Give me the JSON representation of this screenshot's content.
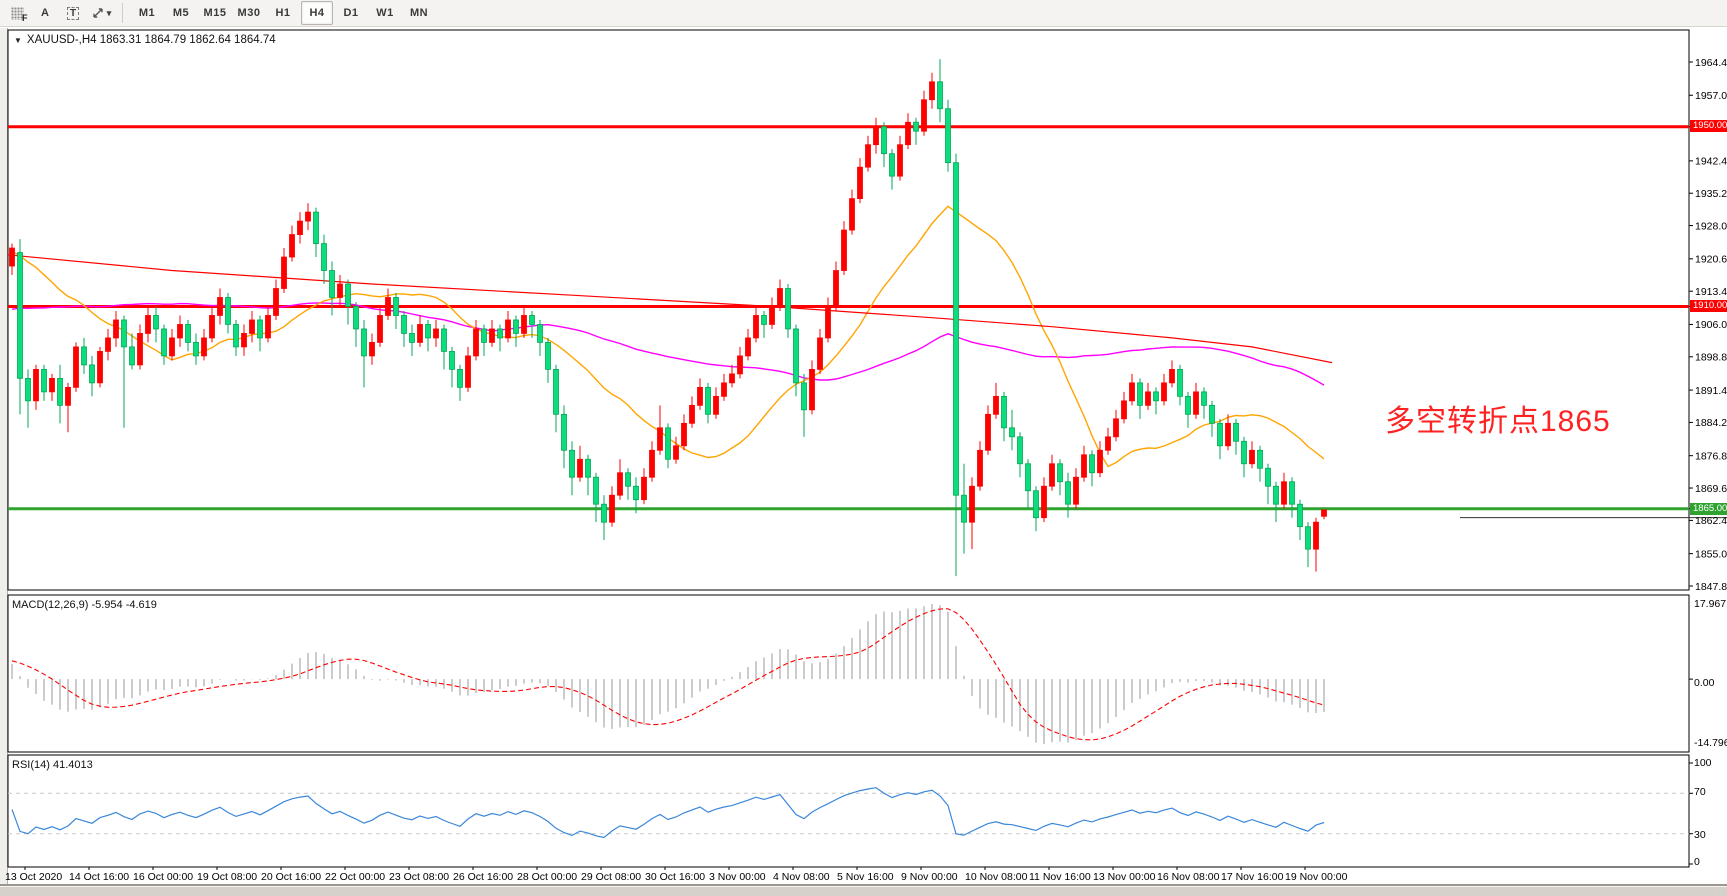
{
  "toolbar": {
    "tools": [
      {
        "name": "new-order-grid-tool",
        "label": "F"
      },
      {
        "name": "text-label-tool",
        "label": "A"
      },
      {
        "name": "text-box-tool",
        "label": "T"
      },
      {
        "name": "arrows-tool",
        "label": ""
      }
    ],
    "timeframes": [
      "M1",
      "M5",
      "M15",
      "M30",
      "H1",
      "H4",
      "D1",
      "W1",
      "MN"
    ],
    "active_timeframe": "H4"
  },
  "icons": {
    "collapse_marker": "▼",
    "tool_caret": "▾"
  },
  "chart": {
    "title": "XAUUSD-,H4  1863.31 1864.79 1862.64 1864.74",
    "annotation": {
      "text": "多空转折点1865",
      "color": "#ff2222"
    },
    "badges": {
      "r1950": "1950.00",
      "r1910": "1910.00",
      "g1865": "1865.00"
    }
  },
  "macd_panel": {
    "label": "MACD(12,26,9) -5.954 -4.619",
    "scale_max": "17.967",
    "scale_zero": "0.00",
    "scale_min": "-14.796"
  },
  "rsi_panel": {
    "label": "RSI(14) 41.4013",
    "levels": [
      {
        "value": 100,
        "text": "100"
      },
      {
        "value": 70,
        "text": "70"
      },
      {
        "value": 30,
        "text": "30"
      },
      {
        "value": 0,
        "text": "0"
      }
    ]
  },
  "time_axis": [
    "13 Oct 2020",
    "14 Oct 16:00",
    "16 Oct 00:00",
    "19 Oct 08:00",
    "20 Oct 16:00",
    "22 Oct 00:00",
    "23 Oct 08:00",
    "26 Oct 16:00",
    "28 Oct 00:00",
    "29 Oct 08:00",
    "30 Oct 16:00",
    "3 Nov 00:00",
    "4 Nov 08:00",
    "5 Nov 16:00",
    "9 Nov 00:00",
    "10 Nov 08:00",
    "11 Nov 16:00",
    "13 Nov 00:00",
    "16 Nov 08:00",
    "17 Nov 16:00",
    "19 Nov 00:00"
  ],
  "chart_data": {
    "type": "candlestick",
    "symbol": "XAUUSD",
    "period": "H4",
    "colors": {
      "bull": "#ff0000",
      "bear_fill": "#0bdc7c",
      "bear_border": "#00a857",
      "hline_red": "#ff0000",
      "hline_green": "#2fa32f",
      "bid_line": "#333333",
      "ma_fast": "#ffa500",
      "ma_slow": "#ff00ff",
      "trendline": "#ff0000",
      "macd_hist": "#c0c0c0",
      "macd_signal": "#ff0000",
      "rsi_line": "#3a87d9",
      "rsi_levels": "#c8c8c8",
      "axis_text": "#000000"
    },
    "y_ticks": [
      {
        "label": "1964.40",
        "price": 1964.4
      },
      {
        "label": "1957.00",
        "price": 1957.0
      },
      {
        "label": "1950.00",
        "price": 1950.0,
        "badge": "red"
      },
      {
        "label": "1942.40",
        "price": 1942.4
      },
      {
        "label": "1935.20",
        "price": 1935.2
      },
      {
        "label": "1928.00",
        "price": 1928.0
      },
      {
        "label": "1920.60",
        "price": 1920.6
      },
      {
        "label": "1913.40",
        "price": 1913.4
      },
      {
        "label": "1910.00",
        "price": 1910.0,
        "badge": "red"
      },
      {
        "label": "1906.00",
        "price": 1906.0
      },
      {
        "label": "1898.80",
        "price": 1898.8
      },
      {
        "label": "1891.40",
        "price": 1891.4
      },
      {
        "label": "1884.20",
        "price": 1884.2
      },
      {
        "label": "1876.80",
        "price": 1876.8
      },
      {
        "label": "1869.60",
        "price": 1869.6
      },
      {
        "label": "1865.00",
        "price": 1865.0,
        "badge": "green"
      },
      {
        "label": "1862.40",
        "price": 1862.4
      },
      {
        "label": "1855.00",
        "price": 1855.0
      },
      {
        "label": "1847.80",
        "price": 1847.8
      }
    ],
    "hlines": [
      {
        "price": 1950.0,
        "color": "#ff0000",
        "width": 3
      },
      {
        "price": 1910.0,
        "color": "#ff0000",
        "width": 3
      },
      {
        "price": 1865.0,
        "color": "#2fa32f",
        "width": 3
      }
    ],
    "bid_price": 1862.9,
    "ma_fast_period": 20,
    "ma_slow_period": 60,
    "macd_params": {
      "fast": 12,
      "slow": 26,
      "signal": 9
    },
    "rsi_period": 14,
    "trendline_points": [
      [
        -0.5,
        1921.5
      ],
      [
        20,
        1918
      ],
      [
        45,
        1915
      ],
      [
        70,
        1912.5
      ],
      [
        95,
        1910
      ],
      [
        115,
        1907.5
      ],
      [
        130,
        1905.5
      ],
      [
        145,
        1903
      ],
      [
        155,
        1901
      ],
      [
        165,
        1897.5
      ]
    ],
    "history_closes": [
      1885,
      1882,
      1888,
      1892,
      1890,
      1886,
      1884,
      1889,
      1893,
      1896,
      1899,
      1902,
      1898,
      1895,
      1891,
      1894,
      1898,
      1903,
      1907,
      1905,
      1902,
      1899,
      1903,
      1908,
      1912,
      1915,
      1911,
      1908,
      1905,
      1909,
      1913,
      1916,
      1912,
      1909,
      1906,
      1910,
      1914,
      1918,
      1921,
      1919,
      1916,
      1913,
      1917,
      1920,
      1924,
      1927,
      1923,
      1920,
      1917,
      1921,
      1925,
      1928,
      1924,
      1921,
      1918,
      1922,
      1926,
      1929,
      1925,
      1922
    ],
    "candles": [
      [
        1919,
        1924,
        1917,
        1923
      ],
      [
        1922,
        1925,
        1886,
        1894
      ],
      [
        1894,
        1896,
        1883,
        1889
      ],
      [
        1889,
        1897,
        1887,
        1896
      ],
      [
        1896,
        1897,
        1889,
        1891
      ],
      [
        1891,
        1895,
        1889,
        1894
      ],
      [
        1894,
        1897,
        1884,
        1888
      ],
      [
        1888,
        1893,
        1882,
        1892
      ],
      [
        1892,
        1902,
        1891,
        1901
      ],
      [
        1901,
        1903,
        1895,
        1897
      ],
      [
        1897,
        1899,
        1890,
        1893
      ],
      [
        1893,
        1901,
        1892,
        1900
      ],
      [
        1900,
        1905,
        1898,
        1903
      ],
      [
        1903,
        1909,
        1901,
        1907
      ],
      [
        1907,
        1908,
        1883,
        1901
      ],
      [
        1901,
        1904,
        1896,
        1897
      ],
      [
        1897,
        1906,
        1896,
        1904
      ],
      [
        1904,
        1910,
        1902,
        1908
      ],
      [
        1908,
        1910,
        1902,
        1905
      ],
      [
        1905,
        1906,
        1897,
        1899
      ],
      [
        1899,
        1905,
        1898,
        1903
      ],
      [
        1903,
        1908,
        1901,
        1906
      ],
      [
        1906,
        1907,
        1900,
        1902
      ],
      [
        1902,
        1904,
        1897,
        1899
      ],
      [
        1899,
        1905,
        1898,
        1903
      ],
      [
        1903,
        1910,
        1902,
        1908
      ],
      [
        1908,
        1914,
        1906,
        1912
      ],
      [
        1912,
        1913,
        1904,
        1906
      ],
      [
        1906,
        1907,
        1899,
        1901
      ],
      [
        1901,
        1906,
        1899,
        1904
      ],
      [
        1904,
        1909,
        1902,
        1907
      ],
      [
        1907,
        1908,
        1900,
        1903
      ],
      [
        1903,
        1910,
        1902,
        1908
      ],
      [
        1908,
        1916,
        1907,
        1914
      ],
      [
        1914,
        1923,
        1913,
        1921
      ],
      [
        1921,
        1928,
        1920,
        1926
      ],
      [
        1926,
        1931,
        1924,
        1929
      ],
      [
        1929,
        1933,
        1927,
        1931
      ],
      [
        1931,
        1932,
        1921,
        1924
      ],
      [
        1924,
        1926,
        1915,
        1918
      ],
      [
        1918,
        1920,
        1908,
        1912
      ],
      [
        1912,
        1917,
        1910,
        1915
      ],
      [
        1915,
        1916,
        1906,
        1910
      ],
      [
        1910,
        1911,
        1901,
        1905
      ],
      [
        1905,
        1907,
        1892,
        1899
      ],
      [
        1899,
        1904,
        1897,
        1902
      ],
      [
        1902,
        1910,
        1901,
        1908
      ],
      [
        1908,
        1914,
        1907,
        1912
      ],
      [
        1912,
        1913,
        1905,
        1908
      ],
      [
        1908,
        1909,
        1901,
        1904
      ],
      [
        1904,
        1906,
        1899,
        1902
      ],
      [
        1902,
        1908,
        1901,
        1906
      ],
      [
        1906,
        1907,
        1900,
        1903
      ],
      [
        1903,
        1907,
        1901,
        1905
      ],
      [
        1905,
        1906,
        1896,
        1900
      ],
      [
        1900,
        1901,
        1892,
        1896
      ],
      [
        1896,
        1897,
        1889,
        1892
      ],
      [
        1892,
        1901,
        1891,
        1899
      ],
      [
        1899,
        1907,
        1898,
        1905
      ],
      [
        1905,
        1906,
        1899,
        1902
      ],
      [
        1902,
        1907,
        1901,
        1905
      ],
      [
        1905,
        1906,
        1900,
        1903
      ],
      [
        1903,
        1909,
        1902,
        1907
      ],
      [
        1907,
        1908,
        1901,
        1904
      ],
      [
        1904,
        1910,
        1903,
        1908
      ],
      [
        1908,
        1909,
        1903,
        1906
      ],
      [
        1906,
        1907,
        1899,
        1902
      ],
      [
        1902,
        1903,
        1893,
        1896
      ],
      [
        1896,
        1897,
        1882,
        1886
      ],
      [
        1886,
        1888,
        1874,
        1878
      ],
      [
        1878,
        1880,
        1868,
        1872
      ],
      [
        1872,
        1879,
        1871,
        1876
      ],
      [
        1876,
        1877,
        1868,
        1872
      ],
      [
        1872,
        1873,
        1862,
        1866
      ],
      [
        1866,
        1868,
        1858,
        1862
      ],
      [
        1862,
        1870,
        1861,
        1868
      ],
      [
        1868,
        1876,
        1867,
        1873
      ],
      [
        1873,
        1874,
        1867,
        1870
      ],
      [
        1870,
        1872,
        1864,
        1867
      ],
      [
        1867,
        1874,
        1866,
        1872
      ],
      [
        1872,
        1880,
        1871,
        1878
      ],
      [
        1878,
        1888,
        1877,
        1883
      ],
      [
        1883,
        1884,
        1874,
        1876
      ],
      [
        1876,
        1881,
        1875,
        1879
      ],
      [
        1879,
        1886,
        1878,
        1884
      ],
      [
        1884,
        1890,
        1883,
        1888
      ],
      [
        1888,
        1894,
        1887,
        1892
      ],
      [
        1892,
        1893,
        1884,
        1886
      ],
      [
        1886,
        1892,
        1885,
        1890
      ],
      [
        1890,
        1895,
        1889,
        1893
      ],
      [
        1893,
        1897,
        1892,
        1895
      ],
      [
        1895,
        1901,
        1894,
        1899
      ],
      [
        1899,
        1905,
        1898,
        1903
      ],
      [
        1903,
        1910,
        1902,
        1908
      ],
      [
        1908,
        1909,
        1903,
        1906
      ],
      [
        1906,
        1912,
        1905,
        1910
      ],
      [
        1910,
        1916,
        1909,
        1914
      ],
      [
        1914,
        1915,
        1903,
        1905
      ],
      [
        1905,
        1906,
        1890,
        1893
      ],
      [
        1893,
        1895,
        1881,
        1887
      ],
      [
        1887,
        1898,
        1886,
        1896
      ],
      [
        1896,
        1905,
        1895,
        1903
      ],
      [
        1903,
        1912,
        1902,
        1910
      ],
      [
        1910,
        1920,
        1909,
        1918
      ],
      [
        1918,
        1929,
        1917,
        1927
      ],
      [
        1927,
        1936,
        1926,
        1934
      ],
      [
        1934,
        1943,
        1933,
        1941
      ],
      [
        1941,
        1948,
        1940,
        1946
      ],
      [
        1946,
        1952,
        1944,
        1950
      ],
      [
        1950,
        1951,
        1941,
        1944
      ],
      [
        1944,
        1945,
        1936,
        1939
      ],
      [
        1939,
        1948,
        1938,
        1946
      ],
      [
        1946,
        1953,
        1945,
        1951
      ],
      [
        1951,
        1952,
        1946,
        1949
      ],
      [
        1949,
        1958,
        1948,
        1956
      ],
      [
        1956,
        1962,
        1954,
        1960
      ],
      [
        1960,
        1965,
        1951,
        1954
      ],
      [
        1954,
        1956,
        1940,
        1942
      ],
      [
        1942,
        1944,
        1850,
        1868
      ],
      [
        1868,
        1875,
        1855,
        1862
      ],
      [
        1862,
        1872,
        1856,
        1870
      ],
      [
        1870,
        1880,
        1869,
        1878
      ],
      [
        1878,
        1888,
        1877,
        1886
      ],
      [
        1886,
        1893,
        1885,
        1890
      ],
      [
        1890,
        1891,
        1880,
        1883
      ],
      [
        1883,
        1887,
        1878,
        1881
      ],
      [
        1881,
        1882,
        1872,
        1875
      ],
      [
        1875,
        1876,
        1865,
        1869
      ],
      [
        1869,
        1870,
        1860,
        1863
      ],
      [
        1863,
        1872,
        1862,
        1870
      ],
      [
        1870,
        1877,
        1869,
        1875
      ],
      [
        1875,
        1876,
        1868,
        1871
      ],
      [
        1871,
        1873,
        1863,
        1866
      ],
      [
        1866,
        1874,
        1865,
        1872
      ],
      [
        1872,
        1879,
        1871,
        1877
      ],
      [
        1877,
        1878,
        1870,
        1873
      ],
      [
        1873,
        1880,
        1872,
        1878
      ],
      [
        1878,
        1883,
        1877,
        1881
      ],
      [
        1881,
        1887,
        1880,
        1885
      ],
      [
        1885,
        1891,
        1884,
        1889
      ],
      [
        1889,
        1895,
        1888,
        1893
      ],
      [
        1893,
        1894,
        1885,
        1888
      ],
      [
        1888,
        1893,
        1887,
        1891
      ],
      [
        1891,
        1892,
        1886,
        1889
      ],
      [
        1889,
        1895,
        1888,
        1893
      ],
      [
        1893,
        1898,
        1892,
        1896
      ],
      [
        1896,
        1897,
        1888,
        1890
      ],
      [
        1890,
        1891,
        1883,
        1886
      ],
      [
        1886,
        1893,
        1885,
        1891
      ],
      [
        1891,
        1892,
        1885,
        1888
      ],
      [
        1888,
        1889,
        1881,
        1884
      ],
      [
        1884,
        1885,
        1876,
        1879
      ],
      [
        1879,
        1886,
        1878,
        1884
      ],
      [
        1884,
        1885,
        1877,
        1880
      ],
      [
        1880,
        1881,
        1872,
        1875
      ],
      [
        1875,
        1880,
        1874,
        1878
      ],
      [
        1878,
        1879,
        1871,
        1874
      ],
      [
        1874,
        1875,
        1866,
        1870
      ],
      [
        1870,
        1871,
        1862,
        1866
      ],
      [
        1866,
        1873,
        1865,
        1871
      ],
      [
        1871,
        1872,
        1863,
        1866
      ],
      [
        1866,
        1867,
        1858,
        1861
      ],
      [
        1861,
        1862,
        1852,
        1856
      ],
      [
        1856,
        1863,
        1851,
        1862
      ],
      [
        1863.31,
        1864.79,
        1862.64,
        1864.74
      ]
    ]
  }
}
